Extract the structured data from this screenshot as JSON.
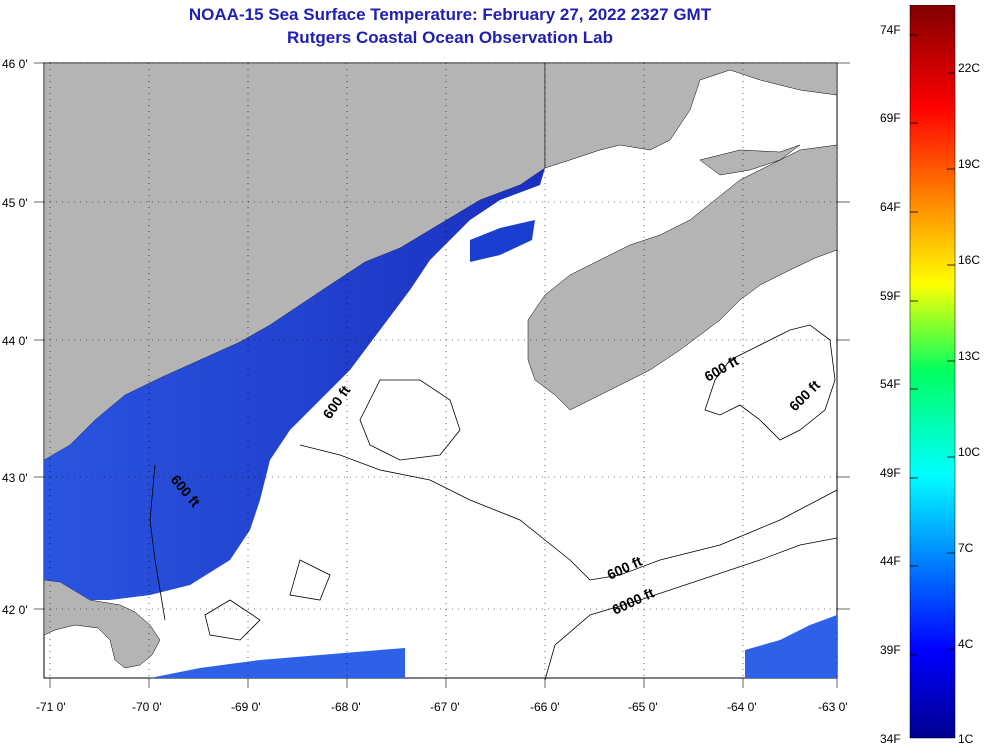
{
  "title": {
    "line1": "NOAA-15 Sea Surface Temperature:  February 27, 2022 2327 GMT",
    "line2": "Rutgers Coastal Ocean Observation Lab"
  },
  "axes": {
    "latitude_labels": [
      "46 0'",
      "45 0'",
      "44 0'",
      "43 0'",
      "42 0'"
    ],
    "longitude_labels": [
      "-71 0'",
      "-70 0'",
      "-69 0'",
      "-68 0'",
      "-67 0'",
      "-66 0'",
      "-65 0'",
      "-64 0'",
      "-63 0'"
    ]
  },
  "contours": [
    {
      "label": "600 ft"
    },
    {
      "label": "600 ft"
    },
    {
      "label": "600 ft"
    },
    {
      "label": "600 ft"
    },
    {
      "label": "600 ft"
    },
    {
      "label": "6000 ft"
    }
  ],
  "colorbar": {
    "fahrenheit_labels": [
      "74F",
      "69F",
      "64F",
      "59F",
      "54F",
      "49F",
      "44F",
      "39F",
      "34F"
    ],
    "celsius_labels": [
      "22C",
      "19C",
      "16C",
      "13C",
      "10C",
      "7C",
      "4C",
      "1C"
    ],
    "colors": {
      "land": "#b4b4b4",
      "cold": "#1010b0",
      "mid": "#2a6ae8",
      "water_nodata": "#ffffff"
    }
  }
}
